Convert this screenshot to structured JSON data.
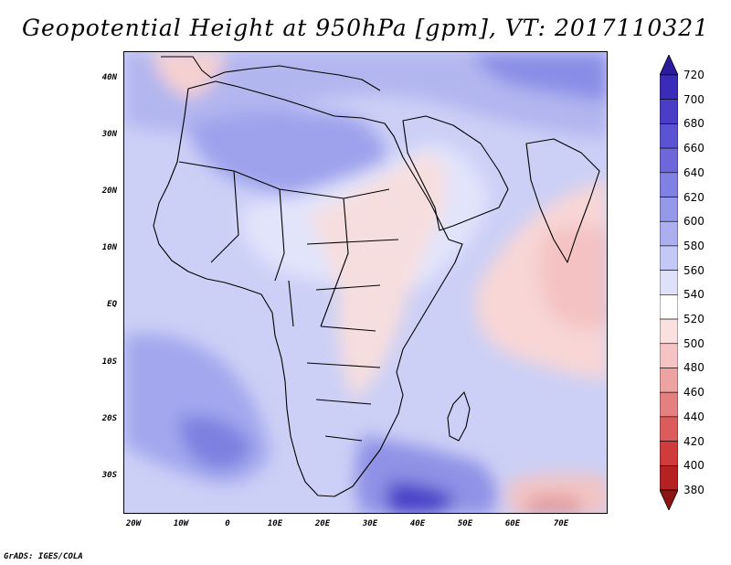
{
  "title": "Geopotential Height at 950hPa [gpm], VT: 2017110321",
  "credit": "GrADS: IGES/COLA",
  "y_ticks": [
    "40N",
    "30N",
    "20N",
    "10N",
    "EQ",
    "10S",
    "20S",
    "30S"
  ],
  "x_ticks": [
    "20W",
    "10W",
    "0",
    "10E",
    "20E",
    "30E",
    "40E",
    "50E",
    "60E",
    "70E"
  ],
  "colorbar": {
    "labels": [
      "720",
      "700",
      "680",
      "660",
      "640",
      "620",
      "600",
      "580",
      "560",
      "540",
      "520",
      "500",
      "480",
      "460",
      "440",
      "420",
      "400",
      "380"
    ],
    "colors": [
      "#2b1a9e",
      "#3a2bb8",
      "#4b3dc8",
      "#5c52d4",
      "#6e67dc",
      "#8180e3",
      "#9698e9",
      "#abaff0",
      "#c4c8f5",
      "#dfe1fa",
      "#ffffff",
      "#fbe0e0",
      "#f6c4c4",
      "#eea3a3",
      "#e58080",
      "#dc5c5c",
      "#d03b3b",
      "#b42222",
      "#8e1414"
    ]
  },
  "map": {
    "background_color": "#c9cdf6",
    "coastline_color": "#000000"
  }
}
